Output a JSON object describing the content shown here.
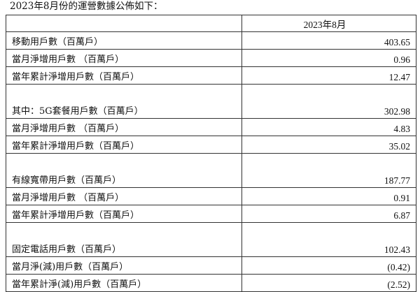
{
  "title": "2023年8月份的運營數據公佈如下：",
  "header": {
    "label": "",
    "period": "2023年8月"
  },
  "rows": [
    {
      "label": "移動用戶數（百萬戶）",
      "value": "403.65",
      "tall": false
    },
    {
      "label": "當月淨增用戶數 （百萬戶）",
      "value": "0.96",
      "tall": false
    },
    {
      "label": "當年累計淨增用戶數（百萬戶）",
      "value": "12.47",
      "tall": false
    },
    {
      "label": "其中：5G套餐用戶數（百萬戶）",
      "value": "302.98",
      "tall": true
    },
    {
      "label": "當月淨增用戶數 （百萬戶）",
      "value": "4.83",
      "tall": false
    },
    {
      "label": "當年累計淨增用戶數（百萬戶）",
      "value": "35.02",
      "tall": false
    },
    {
      "label": "有線寬帶用戶數（百萬戶）",
      "value": "187.77",
      "tall": true
    },
    {
      "label": "當月淨增用戶數 （百萬戶）",
      "value": "0.91",
      "tall": false
    },
    {
      "label": "當年累計淨增用戶數（百萬戶）",
      "value": "6.87",
      "tall": false
    },
    {
      "label": "固定電話用戶數（百萬戶）",
      "value": "102.43",
      "tall": true
    },
    {
      "label": "當月淨(減)用戶數（百萬戶）",
      "value": "(0.42)",
      "tall": false
    },
    {
      "label": "當年累計淨(減)用戶數（百萬戶）",
      "value": "(2.52)",
      "tall": false
    }
  ]
}
